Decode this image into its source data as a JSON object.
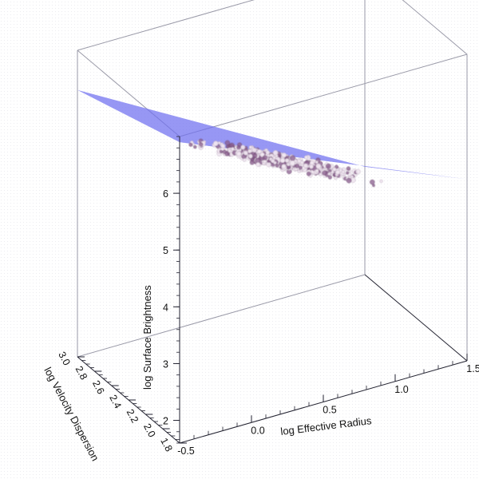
{
  "chart_data": {
    "type": "scatter",
    "projection": "3d",
    "xlabel": "log Effective Radius",
    "ylabel": "log Velocity Dispersion",
    "zlabel": "log Surface Brightness",
    "x_ticks": [
      "-0.5",
      "0.0",
      "0.5",
      "1.0",
      "1.5"
    ],
    "y_ticks": [
      "1.8",
      "2.0",
      "2.2",
      "2.4",
      "2.6",
      "2.8",
      "3.0"
    ],
    "z_ticks": [
      "2",
      "3",
      "4",
      "5",
      "6"
    ],
    "xlim": [
      -0.5,
      1.5
    ],
    "ylim": [
      1.8,
      3.0
    ],
    "zlim": [
      1.6,
      7.0
    ],
    "grid": false,
    "legend": "none",
    "plane": {
      "description_values": "fundamental plane",
      "corners": [
        {
          "x": -0.5,
          "y": 1.8,
          "z": 6.9
        },
        {
          "x": 1.5,
          "y": 1.8,
          "z": 4.8
        },
        {
          "x": 1.5,
          "y": 3.0,
          "z": 3.5
        },
        {
          "x": -0.5,
          "y": 3.0,
          "z": 6.3
        }
      ]
    },
    "cluster": {
      "x_mean": 0.55,
      "y_mean": 2.35,
      "z_mean": 4.5,
      "x_spread": 0.38,
      "y_spread": 0.22,
      "count": 900
    },
    "colors": {
      "plane": "#6f6ff0",
      "points_light": "#f2e8f2",
      "points_dark": "#8a5e8e",
      "box": "#9a9aa8"
    }
  }
}
